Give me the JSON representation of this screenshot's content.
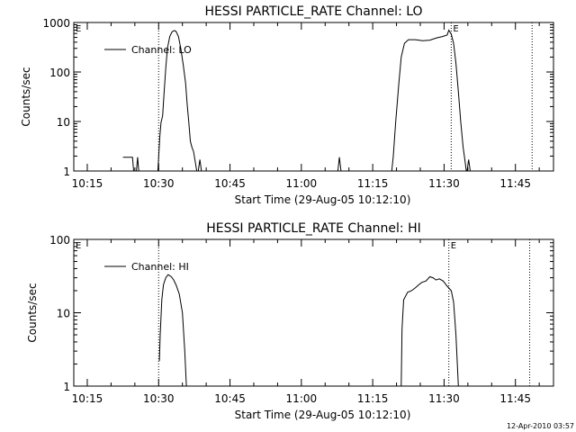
{
  "footer": {
    "timestamp": "12-Apr-2010 03:57"
  },
  "chart_data": [
    {
      "type": "line",
      "title": "HESSI PARTICLE_RATE Channel: LO",
      "xlabel": "Start Time (29-Aug-05 10:12:10)",
      "ylabel": "Counts/sec",
      "y_scale": "log",
      "xlim": [
        "10:12:10",
        "11:53:00"
      ],
      "ylim": [
        1,
        1000
      ],
      "x_tick_labels": [
        "10:15",
        "10:30",
        "10:45",
        "11:00",
        "11:15",
        "11:30",
        "11:45"
      ],
      "y_tick_labels": [
        "1",
        "10",
        "100",
        "1000"
      ],
      "y_tick_values": [
        1,
        10,
        100,
        1000
      ],
      "legend": {
        "label": "Channel: LO",
        "position": "top-left"
      },
      "marker_label": "E",
      "vertical_lines": [
        "10:30:00",
        "11:31:30",
        "11:48:30"
      ],
      "series": [
        {
          "segments": [
            [
              [
                "10:22:30",
                1.9
              ],
              [
                "10:23:00",
                1.9
              ],
              [
                "10:24:30",
                1.9
              ],
              [
                "10:24:45",
                1.0
              ]
            ],
            [
              [
                "10:25:20",
                1.0
              ],
              [
                "10:25:35",
                1.9
              ],
              [
                "10:25:50",
                1.0
              ]
            ],
            [
              [
                "10:29:50",
                1.0
              ],
              [
                "10:30:15",
                5.0
              ],
              [
                "10:30:30",
                9.5
              ],
              [
                "10:30:50",
                13.0
              ],
              [
                "10:31:10",
                40.0
              ],
              [
                "10:31:30",
                120.0
              ],
              [
                "10:31:50",
                300.0
              ],
              [
                "10:32:20",
                520.0
              ],
              [
                "10:32:50",
                650.0
              ],
              [
                "10:33:20",
                690.0
              ],
              [
                "10:33:40",
                660.0
              ],
              [
                "10:34:10",
                520.0
              ],
              [
                "10:34:40",
                300.0
              ],
              [
                "10:35:10",
                140.0
              ],
              [
                "10:35:40",
                60.0
              ],
              [
                "10:36:00",
                22.0
              ],
              [
                "10:36:20",
                10.0
              ],
              [
                "10:36:40",
                4.0
              ],
              [
                "10:37:00",
                3.0
              ],
              [
                "10:37:20",
                2.5
              ],
              [
                "10:37:40",
                1.6
              ],
              [
                "10:38:00",
                1.0
              ]
            ],
            [
              [
                "10:38:20",
                1.0
              ],
              [
                "10:38:40",
                1.7
              ],
              [
                "10:39:00",
                1.0
              ]
            ],
            [
              [
                "11:07:40",
                1.0
              ],
              [
                "11:08:00",
                1.9
              ],
              [
                "11:08:20",
                1.0
              ]
            ],
            [
              [
                "11:19:00",
                1.0
              ],
              [
                "11:19:20",
                2.0
              ],
              [
                "11:19:50",
                10.0
              ],
              [
                "11:20:30",
                60.0
              ],
              [
                "11:21:00",
                200.0
              ],
              [
                "11:21:40",
                380.0
              ],
              [
                "11:22:30",
                450.0
              ],
              [
                "11:24:00",
                450.0
              ],
              [
                "11:25:30",
                430.0
              ],
              [
                "11:27:00",
                440.0
              ],
              [
                "11:28:30",
                490.0
              ],
              [
                "11:29:40",
                520.0
              ],
              [
                "11:30:40",
                560.0
              ],
              [
                "11:31:00",
                700.0
              ],
              [
                "11:31:30",
                580.0
              ],
              [
                "11:32:00",
                380.0
              ],
              [
                "11:32:30",
                150.0
              ],
              [
                "11:33:00",
                40.0
              ],
              [
                "11:33:30",
                10.0
              ],
              [
                "11:34:00",
                3.0
              ],
              [
                "11:34:20",
                1.8
              ],
              [
                "11:34:40",
                1.0
              ]
            ],
            [
              [
                "11:34:50",
                1.0
              ],
              [
                "11:35:10",
                1.7
              ],
              [
                "11:35:30",
                1.0
              ]
            ]
          ]
        }
      ]
    },
    {
      "type": "line",
      "title": "HESSI PARTICLE_RATE Channel: HI",
      "xlabel": "Start Time (29-Aug-05 10:12:10)",
      "ylabel": "Counts/sec",
      "y_scale": "log",
      "xlim": [
        "10:12:10",
        "11:53:00"
      ],
      "ylim": [
        1,
        100
      ],
      "x_tick_labels": [
        "10:15",
        "10:30",
        "10:45",
        "11:00",
        "11:15",
        "11:30",
        "11:45"
      ],
      "y_tick_labels": [
        "1",
        "10",
        "100"
      ],
      "y_tick_values": [
        1,
        10,
        100
      ],
      "legend": {
        "label": "Channel: HI",
        "position": "top-left"
      },
      "marker_label": "E",
      "vertical_lines": [
        "10:30:00",
        "11:31:00",
        "11:48:00"
      ],
      "series": [
        {
          "segments": [
            [
              [
                "10:30:10",
                2.2
              ],
              [
                "10:30:20",
                5.0
              ],
              [
                "10:30:40",
                15.0
              ],
              [
                "10:31:00",
                24.0
              ],
              [
                "10:31:30",
                30.0
              ],
              [
                "10:32:00",
                33.0
              ],
              [
                "10:32:40",
                31.0
              ],
              [
                "10:33:10",
                28.0
              ],
              [
                "10:33:40",
                24.0
              ],
              [
                "10:34:20",
                18.0
              ],
              [
                "10:35:00",
                10.0
              ],
              [
                "10:35:30",
                3.0
              ],
              [
                "10:35:50",
                1.0
              ]
            ],
            [
              [
                "11:21:00",
                1.0
              ],
              [
                "11:21:10",
                6.0
              ],
              [
                "11:21:30",
                15.0
              ],
              [
                "11:22:20",
                19.0
              ],
              [
                "11:23:10",
                20.0
              ],
              [
                "11:24:00",
                22.0
              ],
              [
                "11:24:40",
                24.0
              ],
              [
                "11:25:20",
                26.0
              ],
              [
                "11:26:10",
                27.0
              ],
              [
                "11:27:00",
                31.0
              ],
              [
                "11:27:40",
                30.0
              ],
              [
                "11:28:20",
                28.0
              ],
              [
                "11:29:00",
                29.0
              ],
              [
                "11:29:50",
                27.0
              ],
              [
                "11:30:40",
                23.0
              ],
              [
                "11:31:30",
                20.0
              ],
              [
                "11:32:00",
                14.0
              ],
              [
                "11:32:30",
                5.0
              ],
              [
                "11:33:00",
                1.0
              ]
            ]
          ]
        }
      ]
    }
  ]
}
